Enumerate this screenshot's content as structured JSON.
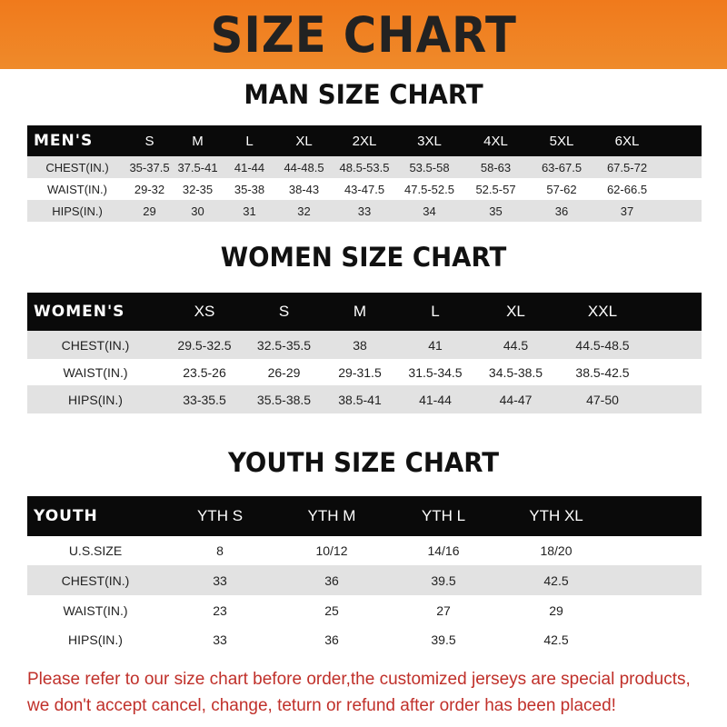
{
  "banner_title": "SIZE CHART",
  "men": {
    "title": "MAN SIZE CHART",
    "header": [
      "MEN'S",
      "S",
      "M",
      "L",
      "XL",
      "2XL",
      "3XL",
      "4XL",
      "5XL",
      "6XL"
    ],
    "rows": [
      [
        "CHEST(IN.)",
        "35-37.5",
        "37.5-41",
        "41-44",
        "44-48.5",
        "48.5-53.5",
        "53.5-58",
        "58-63",
        "63-67.5",
        "67.5-72"
      ],
      [
        "WAIST(IN.)",
        "29-32",
        "32-35",
        "35-38",
        "38-43",
        "43-47.5",
        "47.5-52.5",
        "52.5-57",
        "57-62",
        "62-66.5"
      ],
      [
        "HIPS(IN.)",
        "29",
        "30",
        "31",
        "32",
        "33",
        "34",
        "35",
        "36",
        "37"
      ]
    ]
  },
  "women": {
    "title": "WOMEN SIZE CHART",
    "header": [
      "WOMEN'S",
      "XS",
      "S",
      "M",
      "L",
      "XL",
      "XXL"
    ],
    "rows": [
      [
        "CHEST(IN.)",
        "29.5-32.5",
        "32.5-35.5",
        "38",
        "41",
        "44.5",
        "44.5-48.5"
      ],
      [
        "WAIST(IN.)",
        "23.5-26",
        "26-29",
        "29-31.5",
        "31.5-34.5",
        "34.5-38.5",
        "38.5-42.5"
      ],
      [
        "HIPS(IN.)",
        "33-35.5",
        "35.5-38.5",
        "38.5-41",
        "41-44",
        "44-47",
        "47-50"
      ]
    ]
  },
  "youth": {
    "title": "YOUTH SIZE CHART",
    "header": [
      "YOUTH",
      "YTH S",
      "YTH M",
      "YTH L",
      "YTH XL"
    ],
    "rows": [
      [
        "U.S.SIZE",
        "8",
        "10/12",
        "14/16",
        "18/20"
      ],
      [
        "CHEST(IN.)",
        "33",
        "36",
        "39.5",
        "42.5"
      ],
      [
        "WAIST(IN.)",
        "23",
        "25",
        "27",
        "29"
      ],
      [
        "HIPS(IN.)",
        "33",
        "36",
        "39.5",
        "42.5"
      ]
    ]
  },
  "note": {
    "line1": "Please refer to our size chart before order,the customized jerseys are special products,",
    "line2": "we don't accept cancel, change, teturn or refund after order has been placed!"
  },
  "colors": {
    "banner": "#f07a1c",
    "header_row": "#0a0a0a",
    "stripe": "#e2e2e2",
    "note": "#c0302a"
  }
}
